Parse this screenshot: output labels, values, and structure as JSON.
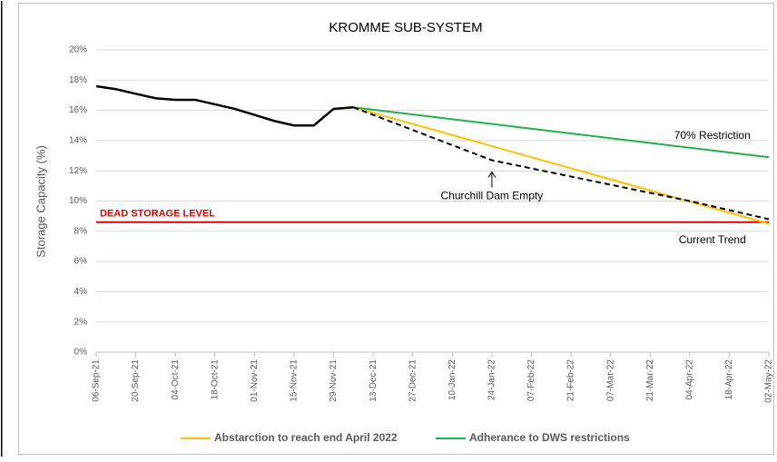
{
  "chart_data": {
    "type": "line",
    "title": "KROMME SUB-SYSTEM",
    "y_label": "Storage Capacity (%)",
    "xlim": [
      "2021-09-06",
      "2022-05-02"
    ],
    "xticks": [
      {
        "value": "2021-09-06",
        "label": "06-Sep-21"
      },
      {
        "value": "2021-09-20",
        "label": "20-Sep-21"
      },
      {
        "value": "2021-10-04",
        "label": "04-Oct-21"
      },
      {
        "value": "2021-10-18",
        "label": "18-Oct-21"
      },
      {
        "value": "2021-11-01",
        "label": "01-Nov-21"
      },
      {
        "value": "2021-11-15",
        "label": "15-Nov-21"
      },
      {
        "value": "2021-11-29",
        "label": "29-Nov-21"
      },
      {
        "value": "2021-12-13",
        "label": "13-Dec-21"
      },
      {
        "value": "2021-12-27",
        "label": "27-Dec-21"
      },
      {
        "value": "2022-01-10",
        "label": "10-Jan-22"
      },
      {
        "value": "2022-01-24",
        "label": "24-Jan-22"
      },
      {
        "value": "2022-02-07",
        "label": "07-Feb-22"
      },
      {
        "value": "2022-02-21",
        "label": "21-Feb-22"
      },
      {
        "value": "2022-03-07",
        "label": "07-Mar-22"
      },
      {
        "value": "2022-03-21",
        "label": "21-Mar-22"
      },
      {
        "value": "2022-04-04",
        "label": "04-Apr-22"
      },
      {
        "value": "2022-04-18",
        "label": "18-Apr-22"
      },
      {
        "value": "2022-05-02",
        "label": "02-May-22"
      }
    ],
    "ylim": [
      0,
      20
    ],
    "yticks": [
      {
        "value": 0,
        "label": "0%"
      },
      {
        "value": 2,
        "label": "2%"
      },
      {
        "value": 4,
        "label": "4%"
      },
      {
        "value": 6,
        "label": "6%"
      },
      {
        "value": 8,
        "label": "8%"
      },
      {
        "value": 10,
        "label": "10%"
      },
      {
        "value": 12,
        "label": "12%"
      },
      {
        "value": 14,
        "label": "14%"
      },
      {
        "value": 16,
        "label": "16%"
      },
      {
        "value": 18,
        "label": "18%"
      },
      {
        "value": 20,
        "label": "20%"
      }
    ],
    "grid": true,
    "series": [
      {
        "color": "#000000",
        "dash": false,
        "x": [
          "2021-09-06",
          "2021-09-13",
          "2021-09-20",
          "2021-09-27",
          "2021-10-04",
          "2021-10-11",
          "2021-10-18",
          "2021-10-25",
          "2021-11-01",
          "2021-11-08",
          "2021-11-15",
          "2021-11-22",
          "2021-11-29",
          "2021-12-06"
        ],
        "values": [
          17.6,
          17.4,
          17.1,
          16.8,
          16.7,
          16.7,
          16.4,
          16.1,
          15.7,
          15.3,
          15.0,
          15.0,
          16.1,
          16.2
        ]
      },
      {
        "name": "Abstarction to reach end April 2022",
        "color": "#ffc000",
        "dash": false,
        "x": [
          "2021-12-06",
          "2022-05-02"
        ],
        "values": [
          16.2,
          8.5
        ]
      },
      {
        "name": "Adherance to DWS restrictions",
        "color": "#22b04b",
        "dash": false,
        "x": [
          "2021-12-06",
          "2022-05-02"
        ],
        "values": [
          16.2,
          12.9
        ]
      },
      {
        "color": "#000000",
        "dash": true,
        "x": [
          "2021-12-06",
          "2022-01-24",
          "2022-04-04",
          "2022-05-02"
        ],
        "values": [
          16.2,
          12.7,
          10.0,
          8.8
        ]
      }
    ],
    "reference_lines": [
      {
        "label": "DEAD STORAGE LEVEL",
        "value": 8.6,
        "color": "#e00000"
      }
    ],
    "annotations": [
      {
        "text": "Churchill Dam Empty",
        "x": "2022-01-24",
        "y": 10.3
      },
      {
        "text": "70% Restriction",
        "x": "2022-04-12",
        "y": 14.3
      },
      {
        "text": "Current Trend",
        "x": "2022-04-12",
        "y": 7.4
      }
    ],
    "legend": "bottom"
  }
}
